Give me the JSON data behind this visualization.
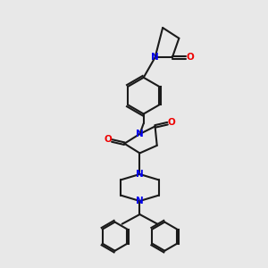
{
  "bg_color": "#e8e8e8",
  "bond_color": "#1a1a1a",
  "N_color": "#0000ee",
  "O_color": "#ee0000",
  "lw": 1.5,
  "xlim": [
    0,
    10
  ],
  "ylim": [
    0,
    14
  ]
}
